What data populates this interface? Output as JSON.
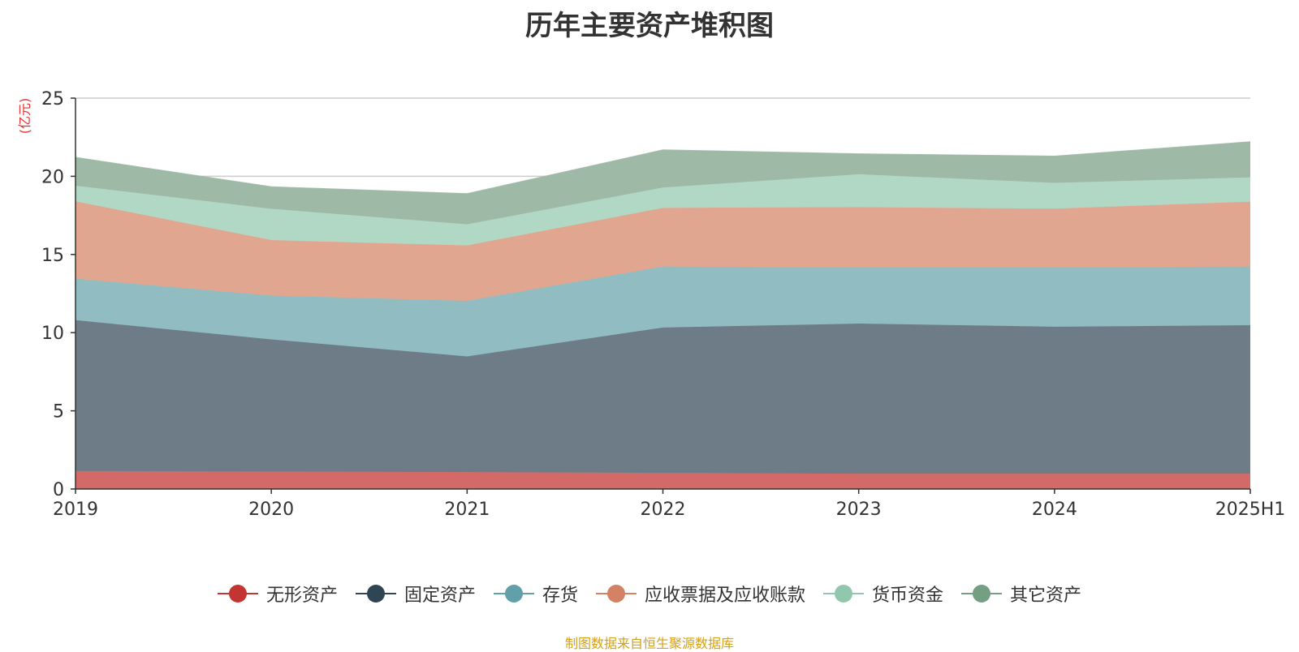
{
  "chart_data": {
    "type": "area",
    "stacked": true,
    "title": "历年主要资产堆积图",
    "ylabel": "(亿元)",
    "xlabel": "",
    "categories": [
      "2019",
      "2020",
      "2021",
      "2022",
      "2023",
      "2024",
      "2025H1"
    ],
    "ylim": [
      0,
      25
    ],
    "yticks": [
      0,
      5,
      10,
      15,
      20,
      25
    ],
    "grid": true,
    "legend_position": "bottom",
    "series": [
      {
        "name": "无形资产",
        "color": "#c23531",
        "fill": "#d46a68",
        "values": [
          1.15,
          1.12,
          1.08,
          1.03,
          0.98,
          0.98,
          0.98
        ]
      },
      {
        "name": "固定资产",
        "color": "#2f4554",
        "fill": "#6e7c87",
        "values": [
          9.65,
          8.45,
          7.4,
          9.3,
          9.6,
          9.4,
          9.5
        ]
      },
      {
        "name": "存货",
        "color": "#61a0a8",
        "fill": "#91bcc2",
        "values": [
          2.65,
          2.8,
          3.55,
          3.9,
          3.6,
          3.8,
          3.75
        ]
      },
      {
        "name": "应收票据及应收账款",
        "color": "#d48265",
        "fill": "#e0a690",
        "values": [
          4.95,
          3.55,
          3.55,
          3.75,
          3.85,
          3.75,
          4.15
        ]
      },
      {
        "name": "货币资金",
        "color": "#91c7ae",
        "fill": "#b1d8c5",
        "values": [
          1.0,
          2.0,
          1.35,
          1.3,
          2.1,
          1.65,
          1.55
        ]
      },
      {
        "name": "其它资产",
        "color": "#749f83",
        "fill": "#9eb9a6",
        "values": [
          1.8,
          1.4,
          1.95,
          2.4,
          1.3,
          1.7,
          2.27
        ]
      }
    ]
  },
  "source_note": "制图数据来自恒生聚源数据库"
}
